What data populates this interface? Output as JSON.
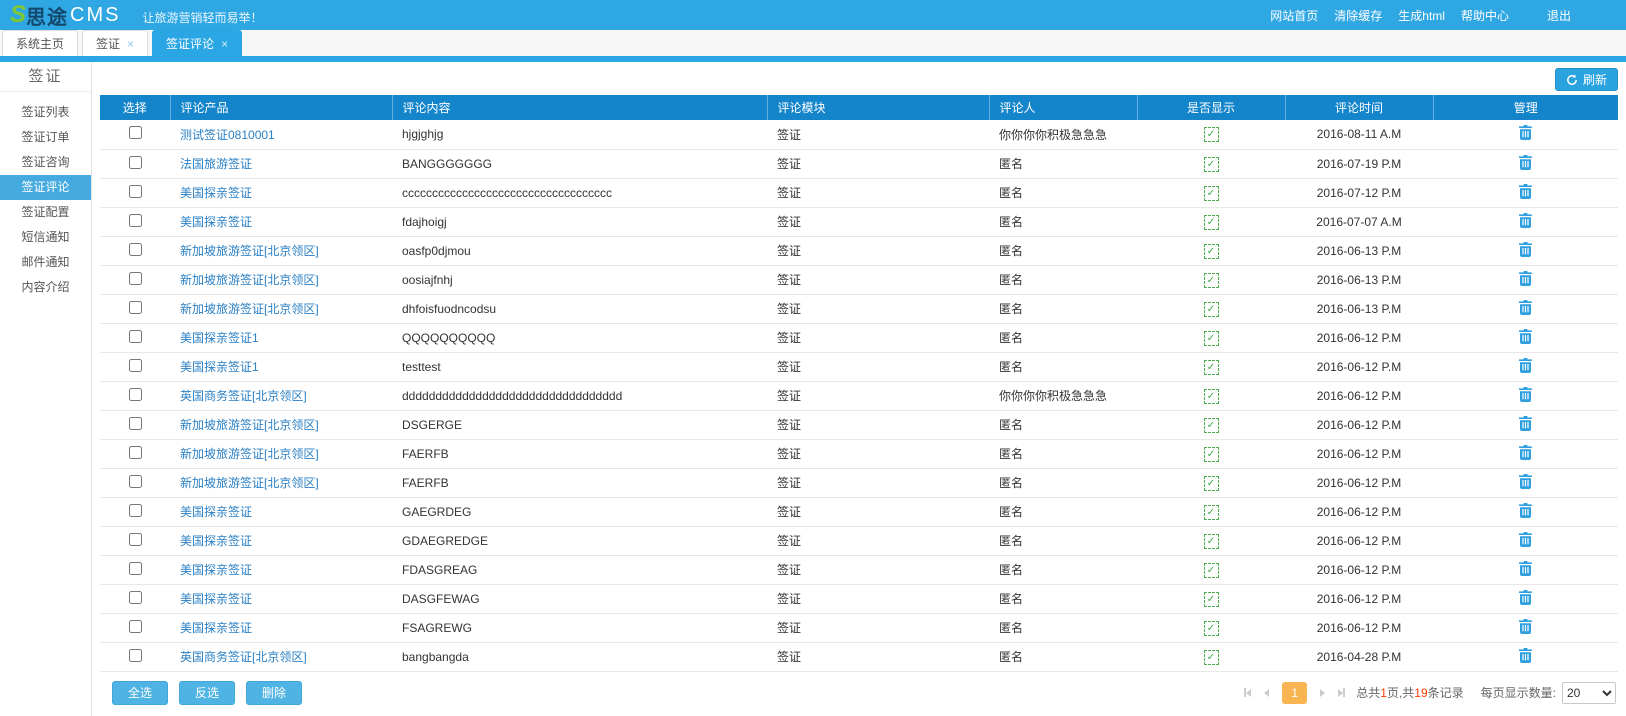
{
  "header": {
    "logo_s": "S",
    "logo_cn": "思途",
    "logo_cms": "CMS",
    "tagline": "让旅游营销轻而易举！",
    "links": [
      {
        "id": "site-home",
        "label": "网站首页"
      },
      {
        "id": "clear-cache",
        "label": "清除缓存"
      },
      {
        "id": "gen-html",
        "label": "生成html"
      },
      {
        "id": "help-center",
        "label": "帮助中心"
      },
      {
        "id": "logout",
        "label": "退出"
      }
    ]
  },
  "tabs": [
    {
      "id": "system-home",
      "label": "系统主页",
      "closable": false,
      "active": false
    },
    {
      "id": "visa",
      "label": "签证",
      "closable": true,
      "active": false
    },
    {
      "id": "visa-comments",
      "label": "签证评论",
      "closable": true,
      "active": true
    }
  ],
  "sidebar": {
    "title": "签证",
    "items": [
      {
        "id": "visa-list",
        "label": "签证列表",
        "active": false
      },
      {
        "id": "visa-orders",
        "label": "签证订单",
        "active": false
      },
      {
        "id": "visa-inquiry",
        "label": "签证咨询",
        "active": false
      },
      {
        "id": "visa-comments",
        "label": "签证评论",
        "active": true
      },
      {
        "id": "visa-config",
        "label": "签证配置",
        "active": false
      },
      {
        "id": "sms-notify",
        "label": "短信通知",
        "active": false
      },
      {
        "id": "email-notify",
        "label": "邮件通知",
        "active": false
      },
      {
        "id": "content-intro",
        "label": "内容介绍",
        "active": false
      }
    ]
  },
  "toolbar": {
    "refresh_label": "刷新"
  },
  "table": {
    "columns": [
      {
        "key": "select",
        "label": "选择",
        "align": "ac"
      },
      {
        "key": "product",
        "label": "评论产品",
        "align": "al"
      },
      {
        "key": "content",
        "label": "评论内容",
        "align": "al"
      },
      {
        "key": "module",
        "label": "评论模块",
        "align": "al"
      },
      {
        "key": "author",
        "label": "评论人",
        "align": "al"
      },
      {
        "key": "visible",
        "label": "是否显示",
        "align": "ac"
      },
      {
        "key": "time",
        "label": "评论时间",
        "align": "ac"
      },
      {
        "key": "manage",
        "label": "管理",
        "align": "ac"
      }
    ],
    "rows": [
      {
        "product": "测试签证0810001",
        "content": "hjgjghjg",
        "module": "签证",
        "author": "你你你你积极急急急",
        "visible": true,
        "time": "2016-08-11 A.M"
      },
      {
        "product": "法国旅游签证",
        "content": "BANGGGGGGG",
        "module": "签证",
        "author": "匿名",
        "visible": true,
        "time": "2016-07-19 P.M"
      },
      {
        "product": "美国探亲签证",
        "content": "ccccccccccccccccccccccccccccccccccc",
        "module": "签证",
        "author": "匿名",
        "visible": true,
        "time": "2016-07-12 P.M"
      },
      {
        "product": "美国探亲签证",
        "content": "fdajhoigj",
        "module": "签证",
        "author": "匿名",
        "visible": true,
        "time": "2016-07-07 A.M"
      },
      {
        "product": "新加坡旅游签证[北京领区]",
        "content": "oasfp0djmou",
        "module": "签证",
        "author": "匿名",
        "visible": true,
        "time": "2016-06-13 P.M"
      },
      {
        "product": "新加坡旅游签证[北京领区]",
        "content": "oosiajfnhj",
        "module": "签证",
        "author": "匿名",
        "visible": true,
        "time": "2016-06-13 P.M"
      },
      {
        "product": "新加坡旅游签证[北京领区]",
        "content": "dhfoisfuodncodsu",
        "module": "签证",
        "author": "匿名",
        "visible": true,
        "time": "2016-06-13 P.M"
      },
      {
        "product": "美国探亲签证1",
        "content": "QQQQQQQQQQ",
        "module": "签证",
        "author": "匿名",
        "visible": true,
        "time": "2016-06-12 P.M"
      },
      {
        "product": "美国探亲签证1",
        "content": "testtest",
        "module": "签证",
        "author": "匿名",
        "visible": true,
        "time": "2016-06-12 P.M"
      },
      {
        "product": "英国商务签证[北京领区]",
        "content": "ddddddddddddddddddddddddddddddddd",
        "module": "签证",
        "author": "你你你你积极急急急",
        "visible": true,
        "time": "2016-06-12 P.M"
      },
      {
        "product": "新加坡旅游签证[北京领区]",
        "content": "DSGERGE",
        "module": "签证",
        "author": "匿名",
        "visible": true,
        "time": "2016-06-12 P.M"
      },
      {
        "product": "新加坡旅游签证[北京领区]",
        "content": "FAERFB",
        "module": "签证",
        "author": "匿名",
        "visible": true,
        "time": "2016-06-12 P.M"
      },
      {
        "product": "新加坡旅游签证[北京领区]",
        "content": "FAERFB",
        "module": "签证",
        "author": "匿名",
        "visible": true,
        "time": "2016-06-12 P.M"
      },
      {
        "product": "美国探亲签证",
        "content": "GAEGRDEG",
        "module": "签证",
        "author": "匿名",
        "visible": true,
        "time": "2016-06-12 P.M"
      },
      {
        "product": "美国探亲签证",
        "content": "GDAEGREDGE",
        "module": "签证",
        "author": "匿名",
        "visible": true,
        "time": "2016-06-12 P.M"
      },
      {
        "product": "美国探亲签证",
        "content": "FDASGREAG",
        "module": "签证",
        "author": "匿名",
        "visible": true,
        "time": "2016-06-12 P.M"
      },
      {
        "product": "美国探亲签证",
        "content": "DASGFEWAG",
        "module": "签证",
        "author": "匿名",
        "visible": true,
        "time": "2016-06-12 P.M"
      },
      {
        "product": "美国探亲签证",
        "content": "FSAGREWG",
        "module": "签证",
        "author": "匿名",
        "visible": true,
        "time": "2016-06-12 P.M"
      },
      {
        "product": "英国商务签证[北京领区]",
        "content": "bangbangda",
        "module": "签证",
        "author": "匿名",
        "visible": true,
        "time": "2016-04-28 P.M"
      }
    ]
  },
  "footer": {
    "buttons": [
      {
        "id": "select-all",
        "label": "全选"
      },
      {
        "id": "invert-selection",
        "label": "反选"
      },
      {
        "id": "delete",
        "label": "删除"
      }
    ],
    "pagination": {
      "current_page": "1",
      "summary_prefix": "总共",
      "page_count": "1",
      "summary_mid": "页,共",
      "record_count": "19",
      "summary_suffix": "条记录",
      "per_page_label": "每页显示数量:",
      "per_page_value": "20"
    }
  },
  "icons": {
    "visible_check": "✓",
    "tab_close": "×"
  },
  "colors": {
    "topbar": "#2fa7e3",
    "accent": "#2ba6e4",
    "table_header": "#1585cb",
    "link": "#2b80c4",
    "active_page": "#f8b551",
    "highlight_number": "#ff3c00",
    "check_green": "#3da843",
    "trash_blue": "#2e9fdf",
    "bulk_button": "#4fb3e3"
  }
}
